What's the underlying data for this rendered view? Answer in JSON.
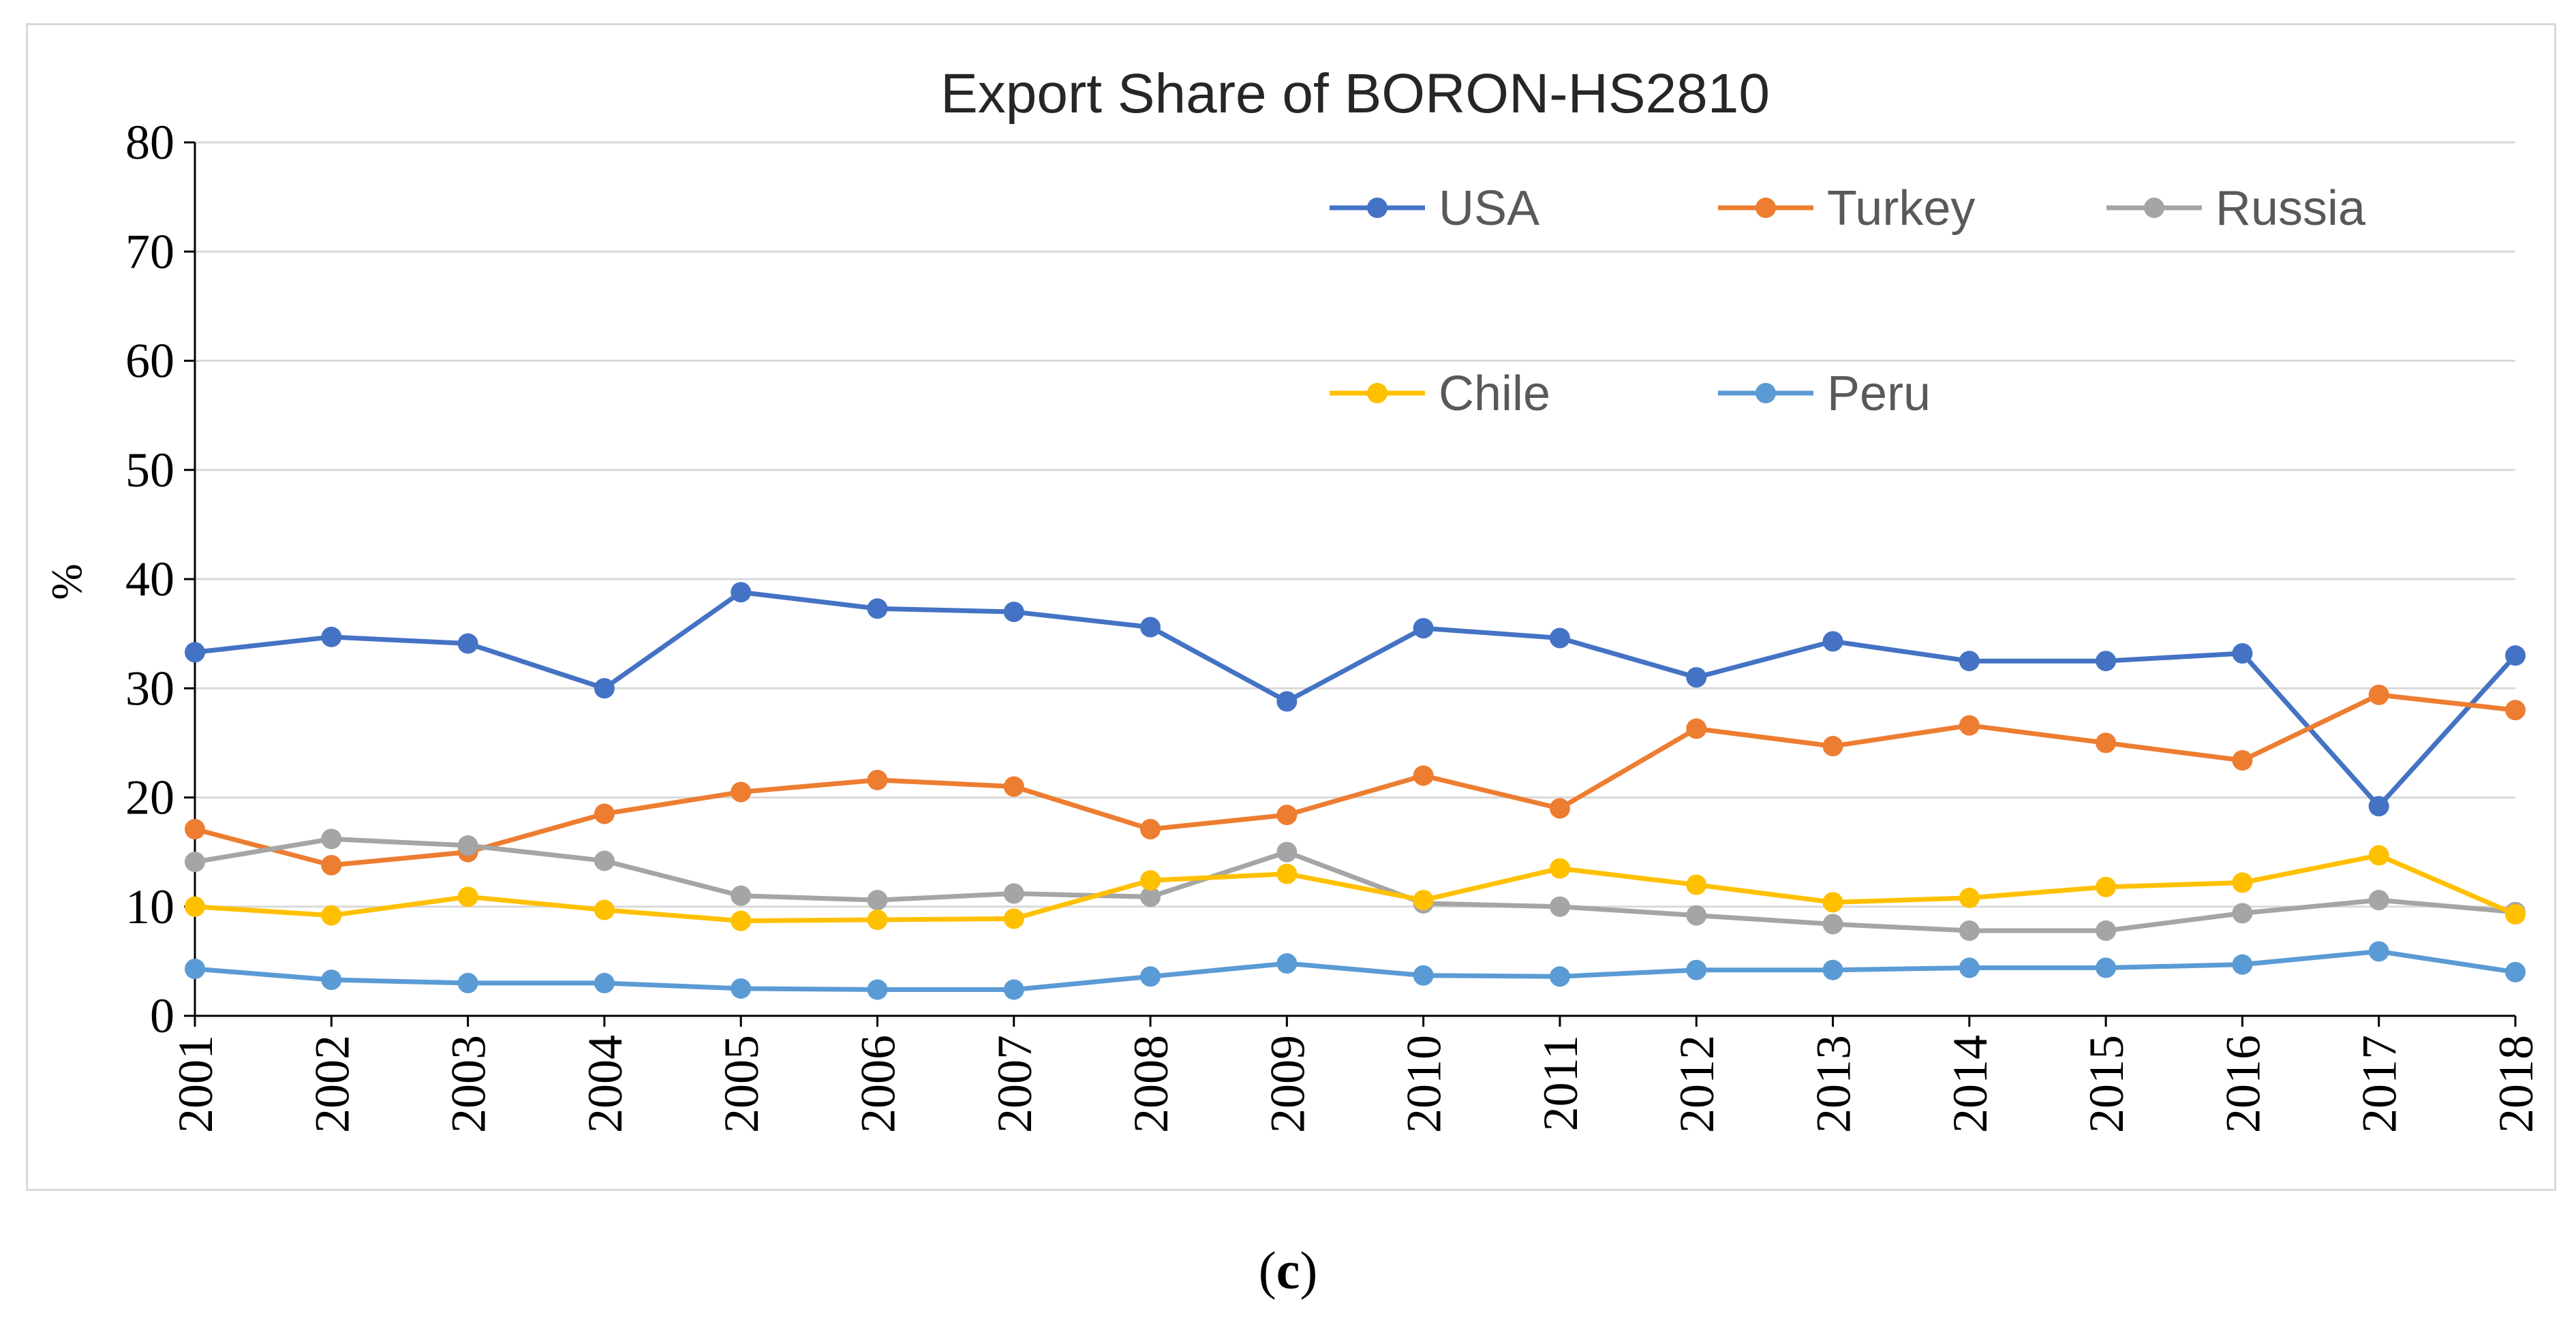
{
  "chart_data": {
    "type": "line",
    "title": "Export Share of BORON-HS2810",
    "xlabel": "",
    "ylabel": "%",
    "ylim": [
      0,
      80
    ],
    "yticks": [
      0,
      10,
      20,
      30,
      40,
      50,
      60,
      70,
      80
    ],
    "categories": [
      "2001",
      "2002",
      "2003",
      "2004",
      "2005",
      "2006",
      "2007",
      "2008",
      "2009",
      "2010",
      "2011",
      "2012",
      "2013",
      "2014",
      "2015",
      "2016",
      "2017",
      "2018"
    ],
    "grid": true,
    "legend_position": "top-right",
    "series": [
      {
        "name": "USA",
        "color": "#4472c4",
        "values": [
          33.3,
          34.7,
          34.1,
          30.0,
          38.8,
          37.3,
          37.0,
          35.6,
          28.8,
          35.5,
          34.6,
          31.0,
          34.3,
          32.5,
          32.5,
          33.2,
          19.2,
          33.0
        ]
      },
      {
        "name": "Turkey",
        "color": "#ed7d31",
        "values": [
          17.1,
          13.8,
          15.0,
          18.5,
          20.5,
          21.6,
          21.0,
          17.1,
          18.4,
          22.0,
          19.0,
          26.3,
          24.7,
          26.6,
          25.0,
          23.4,
          29.4,
          28.0
        ]
      },
      {
        "name": "Russia",
        "color": "#a5a5a5",
        "values": [
          14.1,
          16.2,
          15.6,
          14.2,
          11.0,
          10.6,
          11.2,
          10.9,
          15.0,
          10.3,
          10.0,
          9.2,
          8.4,
          7.8,
          7.8,
          9.4,
          10.6,
          9.5
        ]
      },
      {
        "name": "Chile",
        "color": "#ffc000",
        "values": [
          10.0,
          9.2,
          10.9,
          9.7,
          8.7,
          8.8,
          8.9,
          12.4,
          13.0,
          10.6,
          13.5,
          12.0,
          10.4,
          10.8,
          11.8,
          12.2,
          14.7,
          9.3
        ]
      },
      {
        "name": "Peru",
        "color": "#5b9bd5",
        "values": [
          4.3,
          3.3,
          3.0,
          3.0,
          2.5,
          2.4,
          2.4,
          3.6,
          4.8,
          3.7,
          3.6,
          4.2,
          4.2,
          4.4,
          4.4,
          4.7,
          5.9,
          4.0
        ]
      }
    ]
  },
  "caption": {
    "open": "(",
    "letter": "c",
    "close": ")"
  }
}
